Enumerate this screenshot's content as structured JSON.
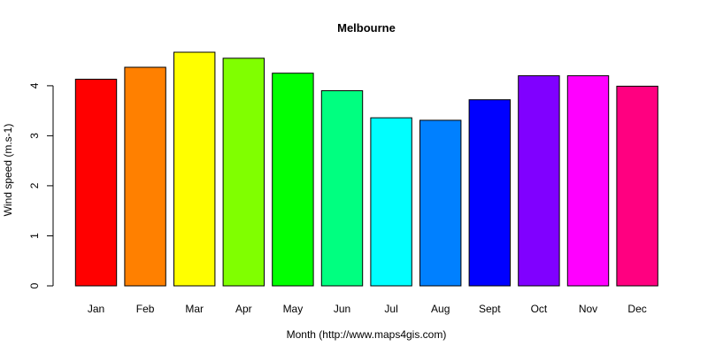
{
  "chart_data": {
    "type": "bar",
    "title": "Melbourne",
    "xlabel": "Month (http://www.maps4gis.com)",
    "ylabel": "Wind speed (m.s-1)",
    "categories": [
      "Jan",
      "Feb",
      "Mar",
      "Apr",
      "May",
      "Jun",
      "Jul",
      "Aug",
      "Sept",
      "Oct",
      "Nov",
      "Dec"
    ],
    "values": [
      4.13,
      4.37,
      4.67,
      4.55,
      4.25,
      3.9,
      3.36,
      3.31,
      3.72,
      4.2,
      4.2,
      3.99
    ],
    "colors": [
      "#FF0000",
      "#FF8000",
      "#FFFF00",
      "#80FF00",
      "#00FF00",
      "#00FF80",
      "#00FFFF",
      "#0080FF",
      "#0000FF",
      "#8000FF",
      "#FF00FF",
      "#FF0080"
    ],
    "y_ticks": [
      0,
      1,
      2,
      3,
      4
    ],
    "ylim": [
      0,
      4.67
    ],
    "grid": false,
    "legend": "none"
  }
}
